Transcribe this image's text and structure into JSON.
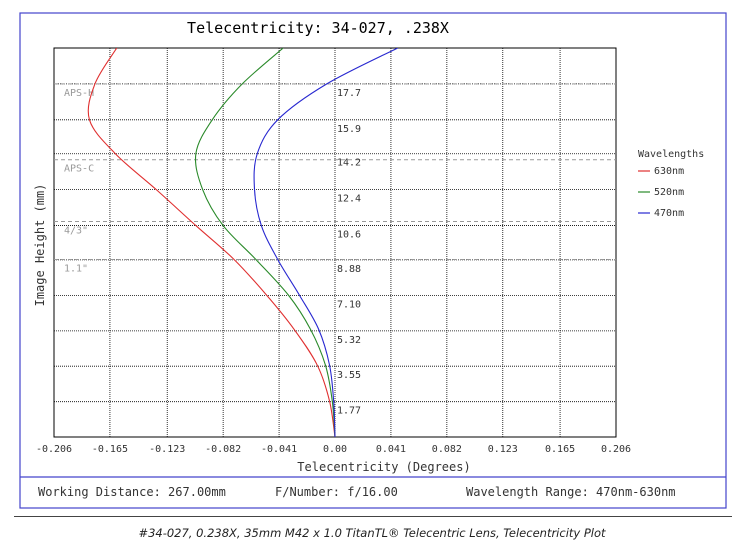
{
  "chart_data": {
    "type": "line",
    "title": "Telecentricity: 34-027, .238X",
    "xlabel": "Telecentricity (Degrees)",
    "ylabel": "Image Height (mm)",
    "xlim": [
      -0.206,
      0.206
    ],
    "ylim": [
      0,
      19.5
    ],
    "x_ticks": [
      "-0.206",
      "-0.165",
      "-0.123",
      "-0.082",
      "-0.041",
      "0.00",
      "0.041",
      "0.082",
      "0.123",
      "0.165",
      "0.206"
    ],
    "x_tick_values": [
      -0.206,
      -0.165,
      -0.123,
      -0.082,
      -0.041,
      0.0,
      0.041,
      0.082,
      0.123,
      0.165,
      0.206
    ],
    "y_ticks": [
      "1.77",
      "3.55",
      "5.32",
      "7.10",
      "8.88",
      "10.6",
      "12.4",
      "14.2",
      "15.9",
      "17.7"
    ],
    "y_tick_values": [
      1.77,
      3.55,
      5.32,
      7.1,
      8.88,
      10.6,
      12.4,
      14.2,
      15.9,
      17.7
    ],
    "grid": true,
    "sensor_lines": [
      {
        "label": "APS-H",
        "y": 17.7
      },
      {
        "label": "APS-C",
        "y": 13.9
      },
      {
        "label": "4/3\"",
        "y": 10.8
      },
      {
        "label": "1.1\"",
        "y": 8.9
      }
    ],
    "legend": {
      "title": "Wavelengths",
      "placement": "right"
    },
    "series": [
      {
        "name": "630nm",
        "color": "#e03030",
        "points": [
          [
            0,
            0
          ],
          [
            -0.004,
            1.8
          ],
          [
            -0.013,
            3.6
          ],
          [
            -0.03,
            5.4
          ],
          [
            -0.05,
            7.1
          ],
          [
            -0.074,
            8.9
          ],
          [
            -0.102,
            10.6
          ],
          [
            -0.131,
            12.4
          ],
          [
            -0.161,
            14.2
          ],
          [
            -0.18,
            15.9
          ],
          [
            -0.176,
            17.7
          ],
          [
            -0.16,
            19.5
          ]
        ]
      },
      {
        "name": "520nm",
        "color": "#2a8a2a",
        "points": [
          [
            0,
            0
          ],
          [
            -0.002,
            1.8
          ],
          [
            -0.007,
            3.6
          ],
          [
            -0.018,
            5.4
          ],
          [
            -0.034,
            7.1
          ],
          [
            -0.058,
            8.9
          ],
          [
            -0.082,
            10.6
          ],
          [
            -0.097,
            12.4
          ],
          [
            -0.102,
            14.2
          ],
          [
            -0.09,
            15.9
          ],
          [
            -0.068,
            17.7
          ],
          [
            -0.038,
            19.5
          ]
        ]
      },
      {
        "name": "470nm",
        "color": "#2828d0",
        "points": [
          [
            0,
            0
          ],
          [
            -0.001,
            1.8
          ],
          [
            -0.004,
            3.6
          ],
          [
            -0.012,
            5.4
          ],
          [
            -0.026,
            7.1
          ],
          [
            -0.042,
            8.9
          ],
          [
            -0.054,
            10.6
          ],
          [
            -0.059,
            12.4
          ],
          [
            -0.057,
            14.2
          ],
          [
            -0.042,
            15.9
          ],
          [
            -0.006,
            17.7
          ],
          [
            0.046,
            19.5
          ]
        ]
      }
    ]
  },
  "footer": {
    "working_distance": "Working Distance: 267.00mm",
    "f_number": "F/Number: f/16.00",
    "wavelength_range": "Wavelength Range: 470nm-630nm"
  },
  "caption": "#34-027, 0.238X, 35mm M42 x 1.0 TitanTL® Telecentric Lens, Telecentricity Plot"
}
